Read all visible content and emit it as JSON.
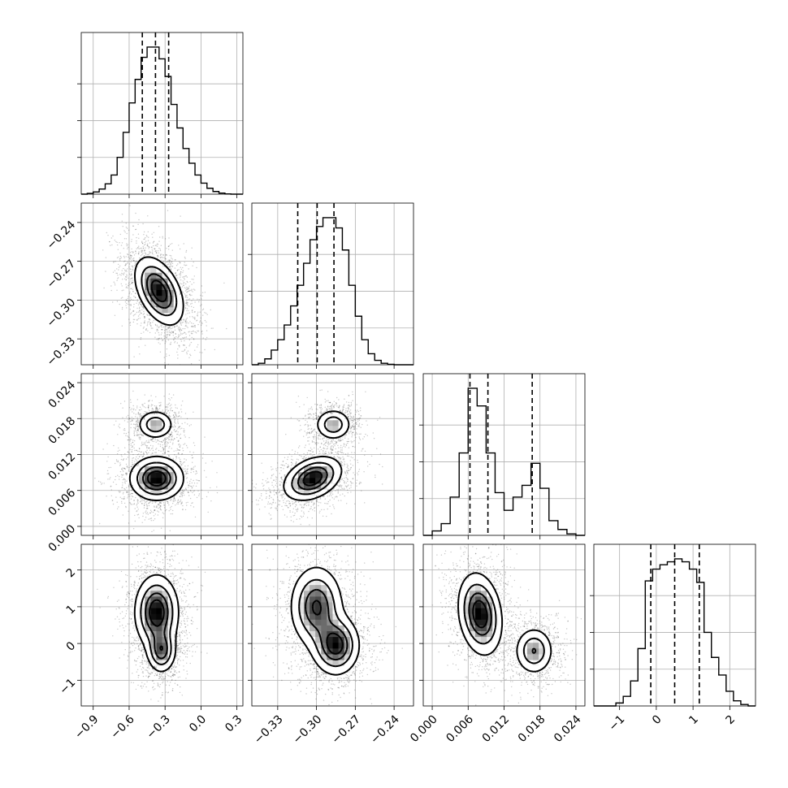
{
  "chart_data": {
    "type": "corner",
    "grid": true,
    "params": [
      {
        "range": [
          -1.0,
          0.35
        ],
        "ticks": [
          -0.9,
          -0.6,
          -0.3,
          0.0,
          0.3
        ],
        "tick_labels": [
          "−0.9",
          "−0.6",
          "−0.3",
          "0.0",
          "0.3"
        ],
        "hist_bins": [
          -1.0,
          -0.95,
          -0.9,
          -0.85,
          -0.8,
          -0.75,
          -0.7,
          -0.65,
          -0.6,
          -0.55,
          -0.5,
          -0.45,
          -0.4,
          -0.35,
          -0.3,
          -0.25,
          -0.2,
          -0.15,
          -0.1,
          -0.05,
          0.0,
          0.05,
          0.1,
          0.15,
          0.2,
          0.25,
          0.3,
          0.35
        ],
        "hist_counts": [
          0.0,
          0.005,
          0.015,
          0.035,
          0.07,
          0.13,
          0.25,
          0.42,
          0.62,
          0.78,
          0.93,
          1.0,
          1.0,
          0.92,
          0.8,
          0.61,
          0.45,
          0.31,
          0.21,
          0.13,
          0.075,
          0.04,
          0.018,
          0.007,
          0.002,
          0.0,
          0.0
        ],
        "quantiles": [
          -0.49,
          -0.38,
          -0.27
        ]
      },
      {
        "range": [
          -0.35,
          -0.225
        ],
        "ticks": [
          -0.33,
          -0.3,
          -0.27,
          -0.24
        ],
        "tick_labels": [
          "−0.33",
          "−0.30",
          "−0.27",
          "−0.24"
        ],
        "hist_bins": [
          -0.35,
          -0.345,
          -0.34,
          -0.335,
          -0.33,
          -0.325,
          -0.32,
          -0.315,
          -0.31,
          -0.305,
          -0.3,
          -0.295,
          -0.29,
          -0.285,
          -0.28,
          -0.275,
          -0.27,
          -0.265,
          -0.26,
          -0.255,
          -0.25,
          -0.245,
          -0.24,
          -0.235,
          -0.23,
          -0.225
        ],
        "hist_counts": [
          0.0,
          0.01,
          0.04,
          0.1,
          0.17,
          0.27,
          0.4,
          0.54,
          0.69,
          0.85,
          0.94,
          1.0,
          1.0,
          0.93,
          0.78,
          0.54,
          0.33,
          0.17,
          0.075,
          0.03,
          0.01,
          0.003,
          0.0,
          0.0,
          0.0
        ],
        "quantiles": [
          -0.3145,
          -0.2995,
          -0.2865
        ]
      },
      {
        "range": [
          -0.0015,
          0.0255
        ],
        "ticks": [
          0.0,
          0.006,
          0.012,
          0.018,
          0.024
        ],
        "tick_labels": [
          "0.000",
          "0.006",
          "0.012",
          "0.018",
          "0.024"
        ],
        "hist_bins": [
          -0.0015,
          0.0,
          0.0015,
          0.003,
          0.0045,
          0.006,
          0.0075,
          0.009,
          0.0105,
          0.012,
          0.0135,
          0.015,
          0.0165,
          0.018,
          0.0195,
          0.021,
          0.0225,
          0.024,
          0.0255
        ],
        "hist_counts": [
          0.0,
          0.03,
          0.08,
          0.26,
          0.56,
          1.0,
          0.88,
          0.56,
          0.29,
          0.17,
          0.26,
          0.34,
          0.49,
          0.32,
          0.1,
          0.04,
          0.01,
          0.0
        ],
        "quantiles": [
          0.0063,
          0.0093,
          0.0167
        ]
      },
      {
        "range": [
          -1.7,
          2.7
        ],
        "ticks": [
          -1,
          0,
          1,
          2
        ],
        "tick_labels": [
          "−1",
          "0",
          "1",
          "2"
        ],
        "hist_bins": [
          -1.7,
          -1.5,
          -1.3,
          -1.1,
          -0.9,
          -0.7,
          -0.5,
          -0.3,
          -0.1,
          0.1,
          0.3,
          0.5,
          0.7,
          0.9,
          1.1,
          1.3,
          1.5,
          1.7,
          1.9,
          2.1,
          2.3,
          2.5,
          2.7
        ],
        "hist_counts": [
          0.0,
          0.0,
          0.0,
          0.02,
          0.065,
          0.17,
          0.39,
          0.85,
          0.93,
          0.96,
          0.98,
          1.0,
          0.98,
          0.93,
          0.84,
          0.5,
          0.33,
          0.21,
          0.1,
          0.035,
          0.01,
          0.0
        ],
        "quantiles": [
          -0.15,
          0.5,
          1.17
        ]
      }
    ],
    "y_tick_labels": {
      "1": [
        "−0.24",
        "−0.27",
        "−0.30",
        "−0.33"
      ],
      "2": [
        "0.024",
        "0.018",
        "0.012",
        "0.006",
        "0.000"
      ],
      "3": [
        "2",
        "1",
        "0",
        "−1"
      ]
    },
    "y_ticks": {
      "1": [
        -0.24,
        -0.27,
        -0.3,
        -0.33
      ],
      "2": [
        0.024,
        0.018,
        0.012,
        0.006,
        0.0
      ],
      "3": [
        2,
        1,
        0,
        -1
      ]
    },
    "y_ranges": {
      "1": [
        -0.35,
        -0.225
      ],
      "2": [
        -0.0015,
        0.0255
      ],
      "3": [
        -1.7,
        2.7
      ]
    },
    "pairs": [
      {
        "row": 1,
        "col": 0,
        "modes": [
          {
            "mx": -0.35,
            "my": -0.293,
            "sx": 0.1,
            "sy": 0.013,
            "rho": -0.45,
            "w": 1.0
          }
        ]
      },
      {
        "row": 2,
        "col": 0,
        "modes": [
          {
            "mx": -0.37,
            "my": 0.008,
            "sx": 0.11,
            "sy": 0.0018,
            "rho": 0.0,
            "w": 1.0
          },
          {
            "mx": -0.38,
            "my": 0.017,
            "sx": 0.075,
            "sy": 0.0012,
            "rho": 0.0,
            "w": 0.55
          }
        ]
      },
      {
        "row": 2,
        "col": 1,
        "modes": [
          {
            "mx": -0.303,
            "my": 0.008,
            "sx": 0.011,
            "sy": 0.0018,
            "rho": 0.35,
            "w": 1.0
          },
          {
            "mx": -0.287,
            "my": 0.017,
            "sx": 0.007,
            "sy": 0.0013,
            "rho": 0.0,
            "w": 0.55
          }
        ]
      },
      {
        "row": 3,
        "col": 0,
        "modes": [
          {
            "mx": -0.37,
            "my": 0.85,
            "sx": 0.09,
            "sy": 0.5,
            "rho": 0.0,
            "w": 1.0
          },
          {
            "mx": -0.33,
            "my": -0.2,
            "sx": 0.06,
            "sy": 0.3,
            "rho": 0.0,
            "w": 0.7
          }
        ]
      },
      {
        "row": 3,
        "col": 1,
        "modes": [
          {
            "mx": -0.3,
            "my": 1.0,
            "sx": 0.01,
            "sy": 0.55,
            "rho": 0.0,
            "w": 0.9
          },
          {
            "mx": -0.285,
            "my": -0.05,
            "sx": 0.009,
            "sy": 0.4,
            "rho": 0.0,
            "w": 1.0
          }
        ]
      },
      {
        "row": 3,
        "col": 2,
        "modes": [
          {
            "mx": 0.008,
            "my": 0.8,
            "sx": 0.0018,
            "sy": 0.55,
            "rho": -0.2,
            "w": 1.0
          },
          {
            "mx": 0.017,
            "my": -0.2,
            "sx": 0.0016,
            "sy": 0.32,
            "rho": 0.0,
            "w": 0.6
          }
        ]
      }
    ]
  }
}
